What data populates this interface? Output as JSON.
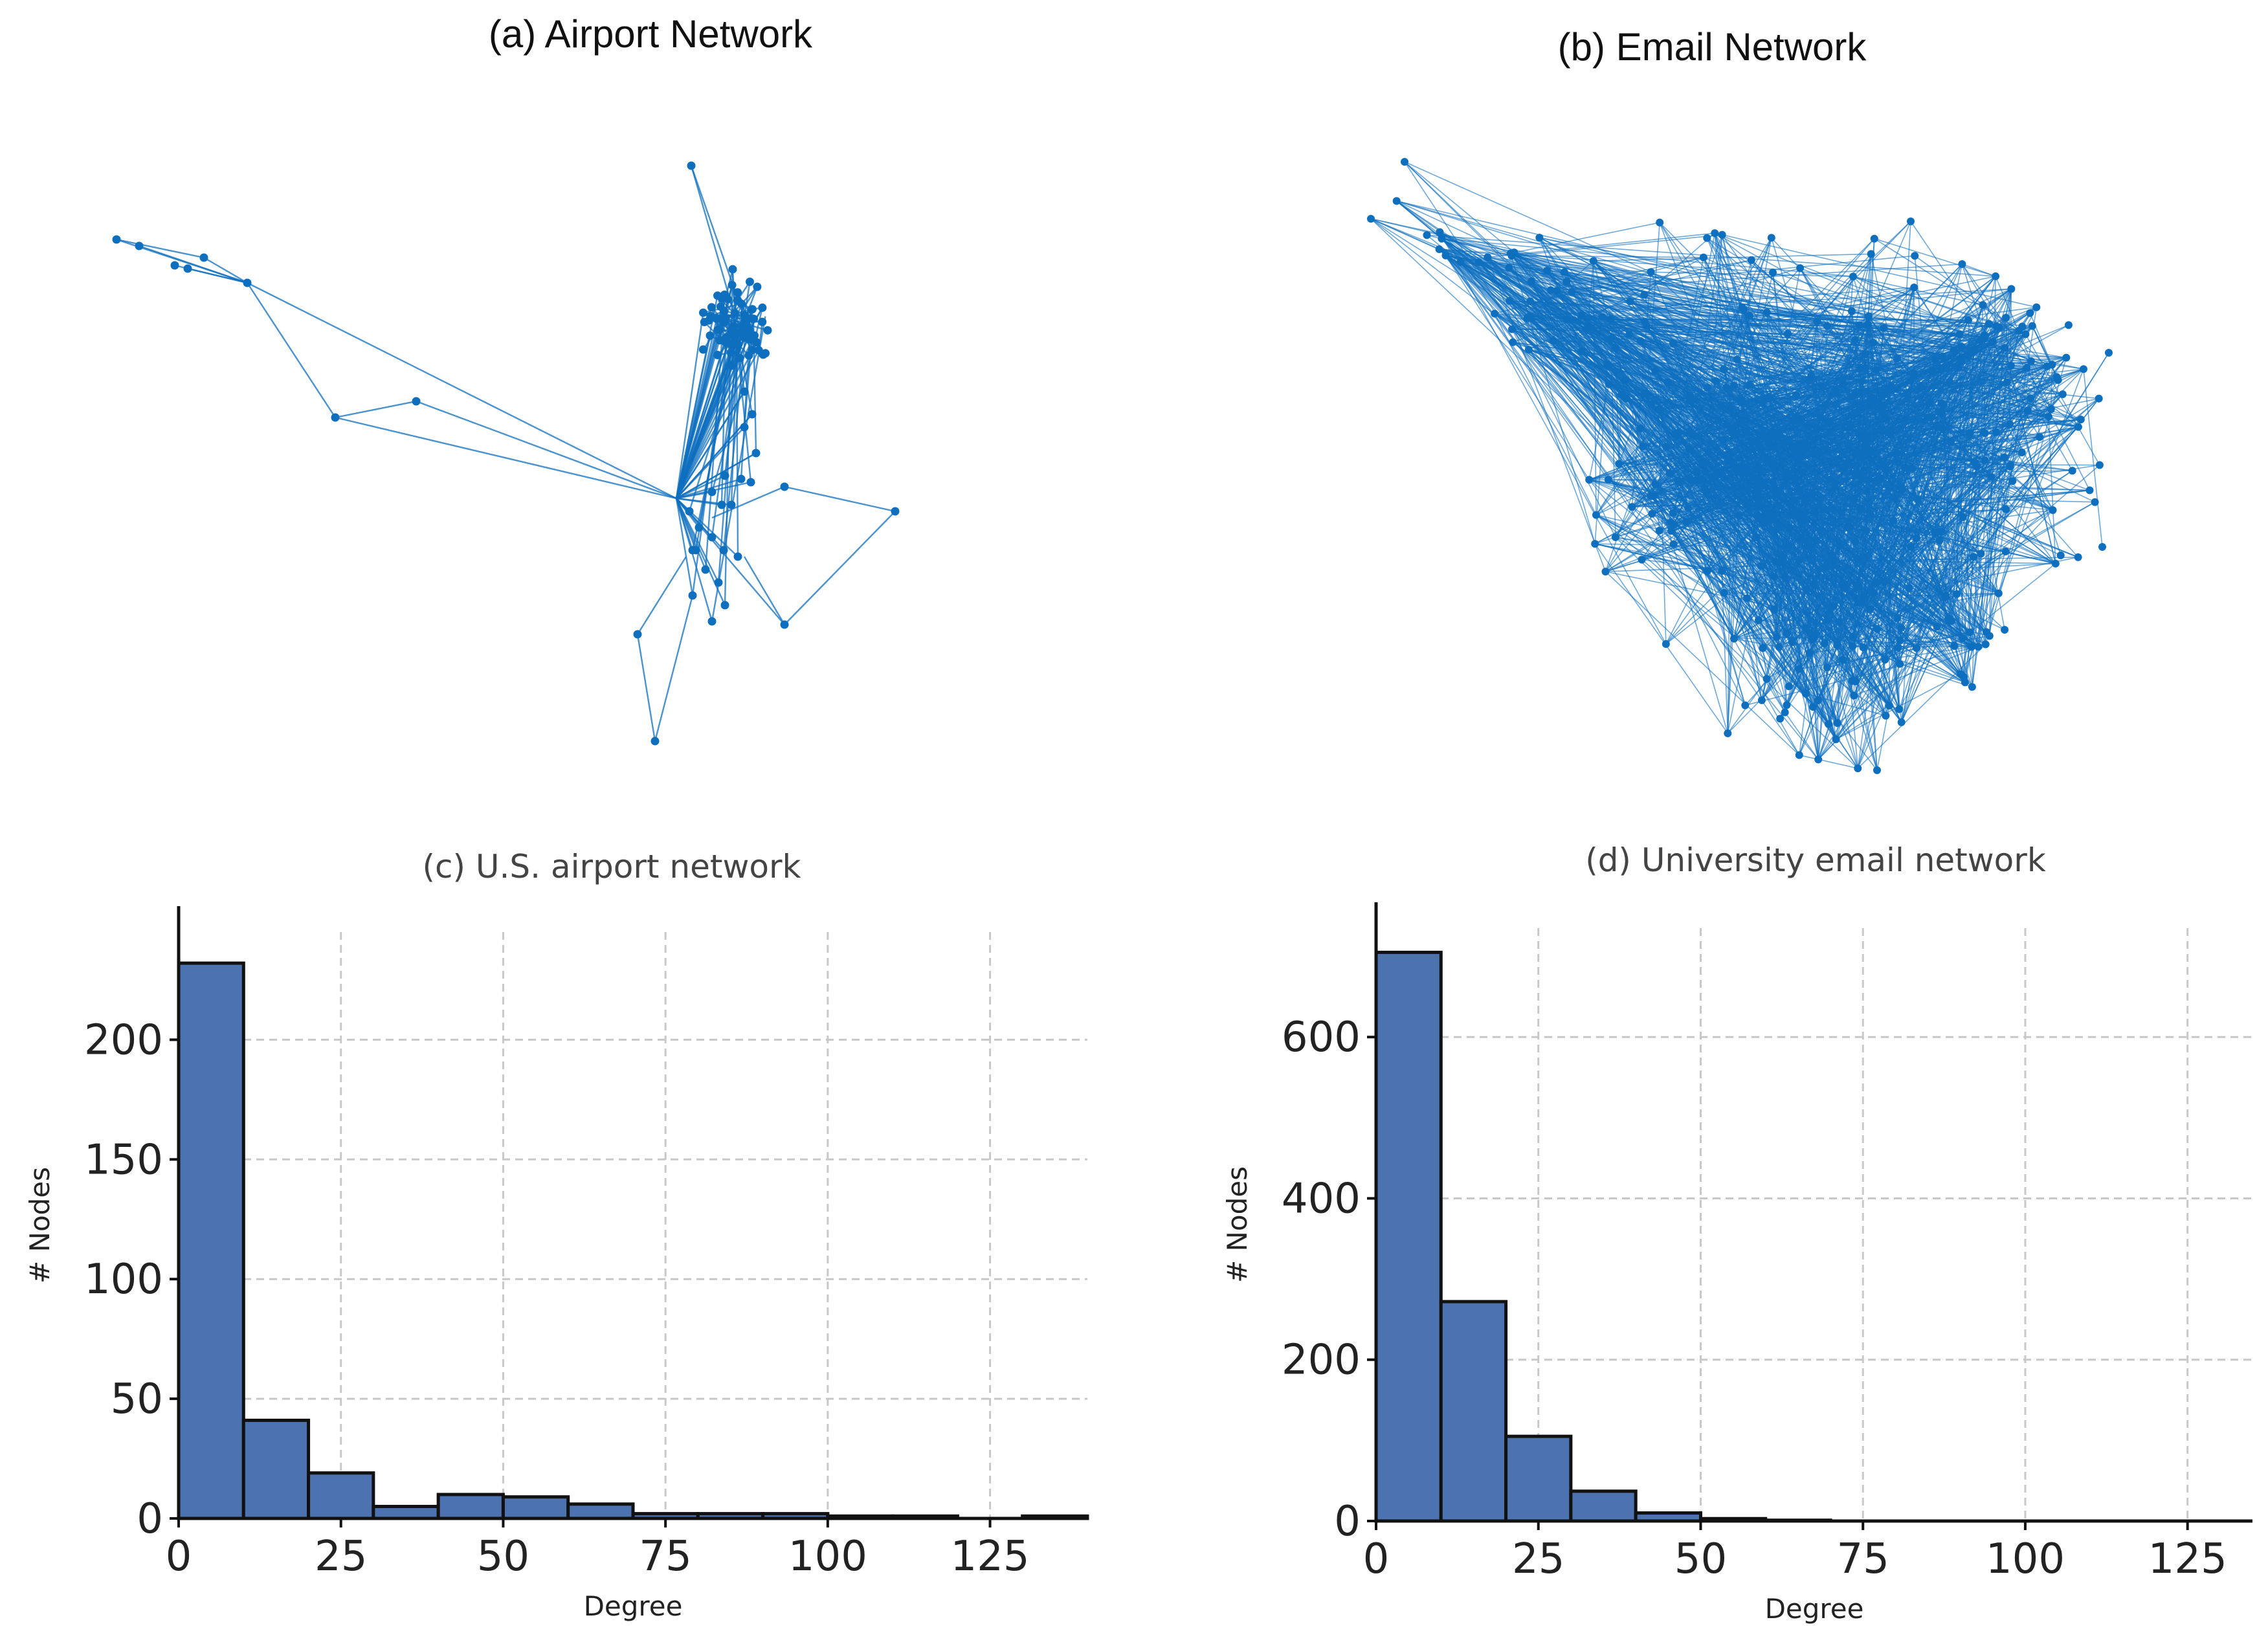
{
  "titles": {
    "a": "(a) Airport Network",
    "b": "(b) Email Network",
    "c": "(c) U.S. airport network",
    "d": "(d) University email network"
  },
  "colors": {
    "network": "#0f6fbf",
    "bar": "#4c72b0",
    "bar_edge": "#111111",
    "grid": "#c8c8c8"
  },
  "chart_data": [
    {
      "type": "network",
      "title": "(a) Airport Network"
    },
    {
      "type": "network",
      "title": "(b) Email Network"
    },
    {
      "type": "bar",
      "title": "(c) U.S. airport network",
      "xlabel": "Degree",
      "ylabel": "# Nodes",
      "bin_edges": [
        0,
        10,
        20,
        30,
        40,
        50,
        60,
        70,
        80,
        90,
        100,
        110,
        120,
        130,
        140
      ],
      "values": [
        232,
        41,
        19,
        5,
        10,
        9,
        6,
        2,
        2,
        2,
        1,
        1,
        0,
        1
      ],
      "xlim": [
        0,
        140
      ],
      "ylim": [
        0,
        245
      ],
      "xticks": [
        0,
        25,
        50,
        75,
        100,
        125
      ],
      "yticks": [
        0,
        50,
        100,
        150,
        200
      ],
      "grid": true
    },
    {
      "type": "bar",
      "title": "(d) University email network",
      "xlabel": "Degree",
      "ylabel": "# Nodes",
      "bin_edges": [
        0,
        10,
        20,
        30,
        40,
        50,
        60,
        70,
        80,
        90,
        100,
        110,
        120,
        130,
        140
      ],
      "values": [
        705,
        272,
        105,
        37,
        10,
        3,
        1,
        0,
        0,
        0,
        0,
        0,
        0,
        0
      ],
      "xlim": [
        0,
        135
      ],
      "ylim": [
        0,
        735
      ],
      "xticks": [
        0,
        25,
        50,
        75,
        100,
        125
      ],
      "yticks": [
        0,
        200,
        400,
        600
      ],
      "grid": true
    }
  ]
}
